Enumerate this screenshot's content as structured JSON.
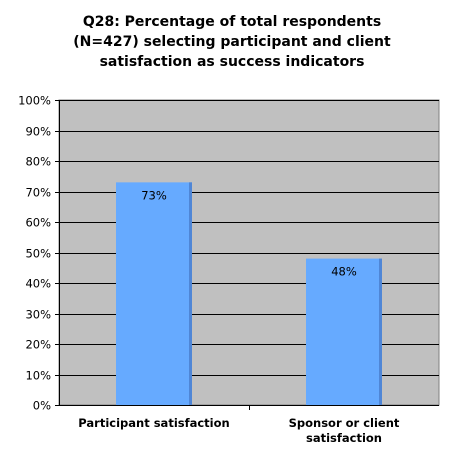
{
  "chart_data": {
    "type": "bar",
    "title_lines": [
      "Q28: Percentage of total respondents",
      "(N=427) selecting participant and client",
      "satisfaction as success indicators"
    ],
    "categories": [
      [
        "Participant satisfaction"
      ],
      [
        "Sponsor or client",
        "satisfaction"
      ]
    ],
    "values": [
      73,
      48
    ],
    "data_labels": [
      "73%",
      "48%"
    ],
    "ylim": [
      0,
      100
    ],
    "yticks": [
      "0%",
      "10%",
      "20%",
      "30%",
      "40%",
      "50%",
      "60%",
      "70%",
      "80%",
      "90%",
      "100%"
    ],
    "xlabel": "",
    "ylabel": "",
    "grid": true,
    "legend": "none",
    "colors": {
      "bar": "#66aaff",
      "bar_shadow": "#4f86d6",
      "plot_bg": "#c0c0c0",
      "axis": "#000000"
    }
  }
}
